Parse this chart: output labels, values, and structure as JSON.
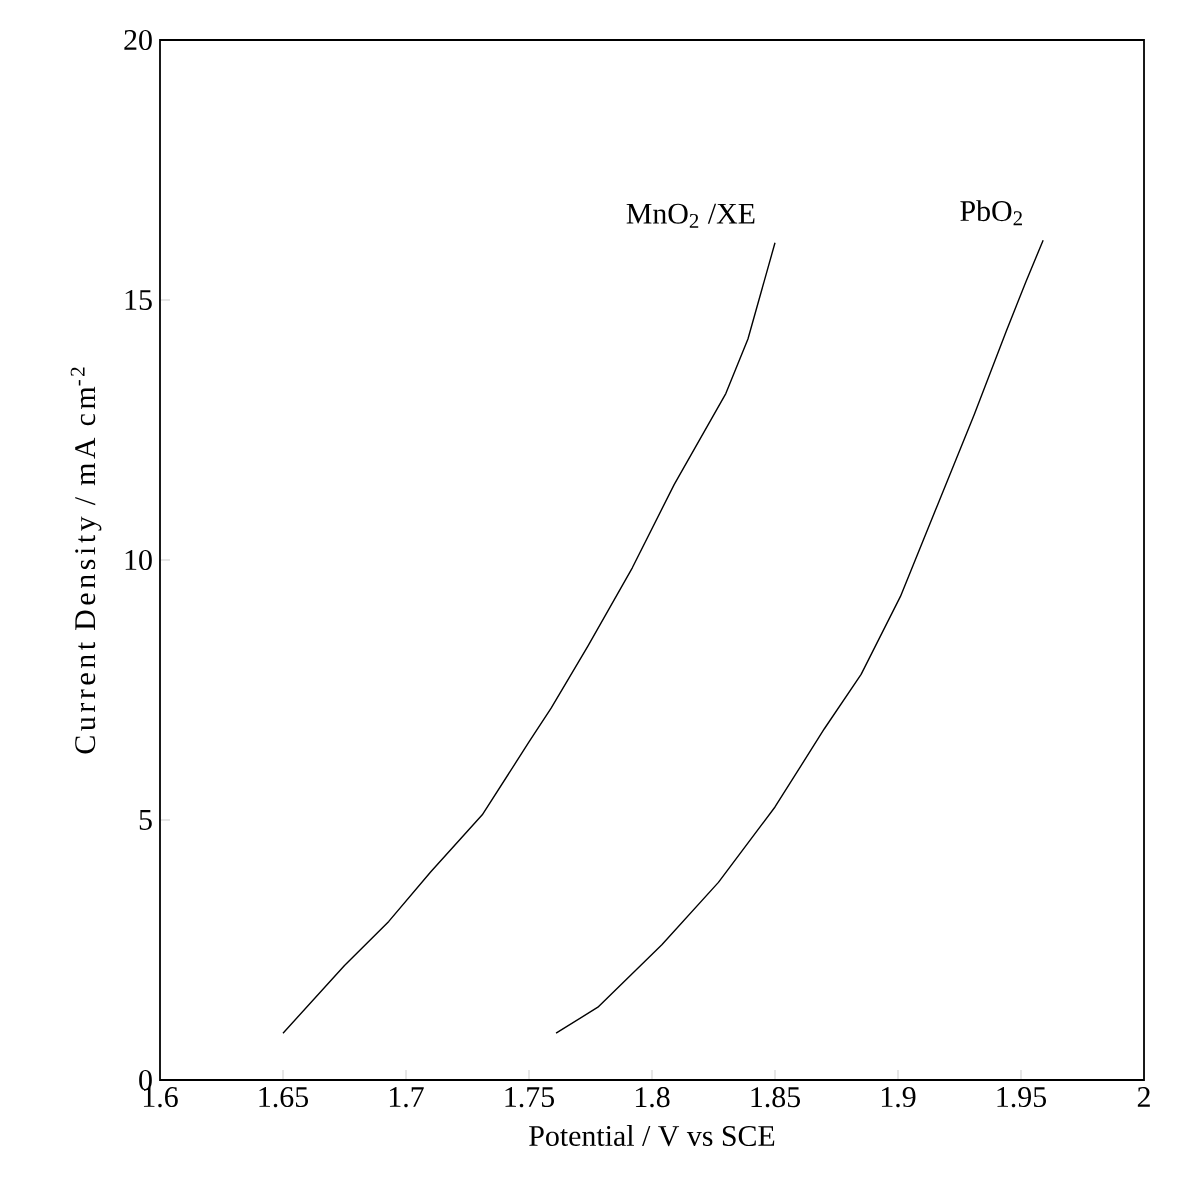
{
  "chart_data": {
    "type": "line",
    "xlabel": "Potential / V vs SCE",
    "ylabel": "Current Density / mA cm$^{-2}$",
    "xlim": [
      1.6,
      2
    ],
    "ylim": [
      0,
      20
    ],
    "xticks": [
      1.6,
      1.65,
      1.7,
      1.75,
      1.8,
      1.85,
      1.9,
      1.95,
      2
    ],
    "yticks": [
      0,
      5,
      10,
      15,
      20
    ],
    "grid": false,
    "legend": false,
    "marker": "none",
    "line_style": "solid",
    "series": [
      {
        "name": "MnO$_{2}$ /XE",
        "color": "#000000",
        "x": [
          1.65,
          1.675,
          1.693,
          1.71,
          1.731,
          1.75,
          1.759,
          1.774,
          1.792,
          1.809,
          1.83,
          1.839,
          1.85
        ],
        "values": [
          0.9,
          2.2,
          3.05,
          4.0,
          5.1,
          6.5,
          7.15,
          8.35,
          9.85,
          11.45,
          13.2,
          14.25,
          16.1
        ]
      },
      {
        "name": "PbO$_{2}$",
        "color": "#000000",
        "x": [
          1.761,
          1.778,
          1.804,
          1.827,
          1.85,
          1.87,
          1.885,
          1.901,
          1.916,
          1.931,
          1.944,
          1.952,
          1.959
        ],
        "values": [
          0.9,
          1.4,
          2.6,
          3.8,
          5.25,
          6.75,
          7.8,
          9.3,
          11.05,
          12.8,
          14.4,
          15.35,
          16.15
        ]
      }
    ]
  }
}
